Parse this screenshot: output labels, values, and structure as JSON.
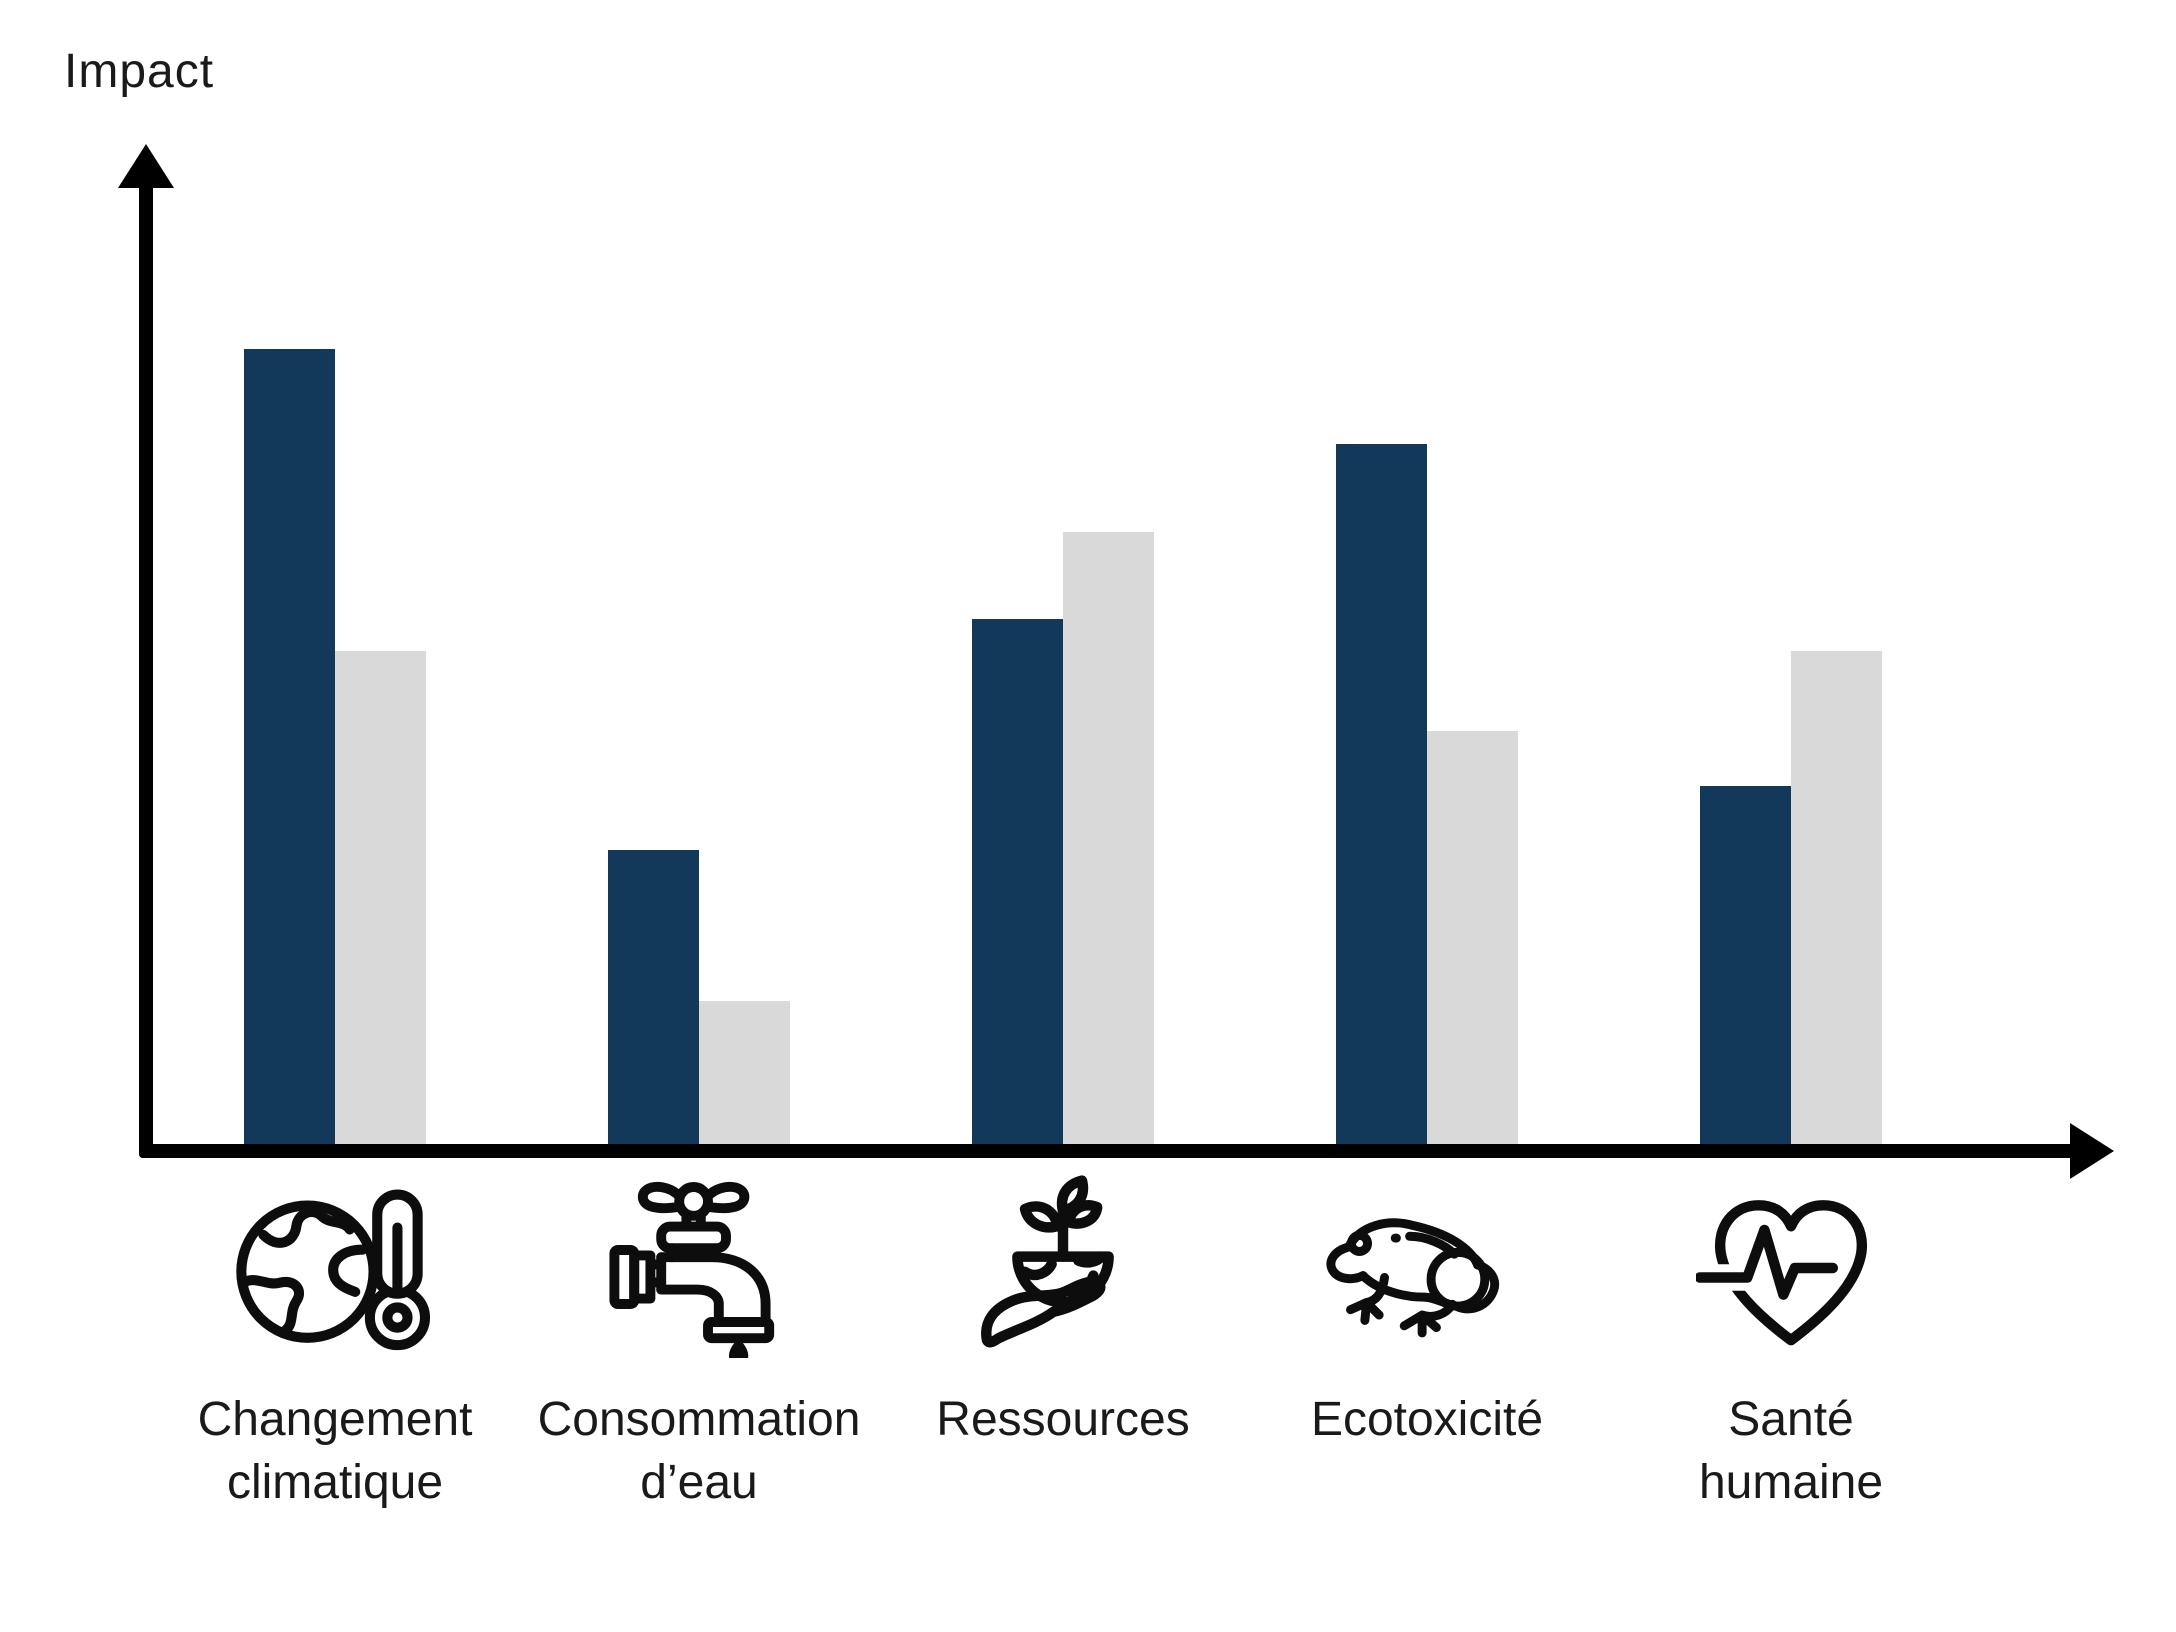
{
  "colors": {
    "series_primary": "#13395A",
    "series_secondary": "#D9D9D9",
    "axis": "#000000",
    "text": "#1A1A1A",
    "icon_stroke": "#0D0D0D",
    "background": "#FFFFFF"
  },
  "chart_data": {
    "type": "bar",
    "title": "",
    "xlabel": "",
    "ylabel": "Impact",
    "ylim": [
      0,
      100
    ],
    "grid": false,
    "legend": "none",
    "axis_tick_labels": "none (unitless axis with arrowheads)",
    "categories": [
      "Changement climatique",
      "Consommation d’eau",
      "Ressources",
      "Ecotoxicité",
      "Santé humaine"
    ],
    "category_label_lines": [
      [
        "Changement",
        "climatique"
      ],
      [
        "Consommation",
        "d’eau"
      ],
      [
        "Ressources",
        ""
      ],
      [
        "Ecotoxicité",
        ""
      ],
      [
        "Santé",
        "humaine"
      ]
    ],
    "category_icons": [
      "globe-thermometer-icon",
      "water-faucet-drop-icon",
      "hand-holding-earth-plant-icon",
      "frog-icon",
      "heart-pulse-icon"
    ],
    "series": [
      {
        "name": "series-1-dark-navy",
        "color": "#13395A",
        "values": [
          100,
          37,
          66,
          88,
          45
        ]
      },
      {
        "name": "series-2-light-gray",
        "color": "#D9D9D9",
        "values": [
          62,
          18,
          77,
          52,
          62
        ]
      }
    ]
  }
}
